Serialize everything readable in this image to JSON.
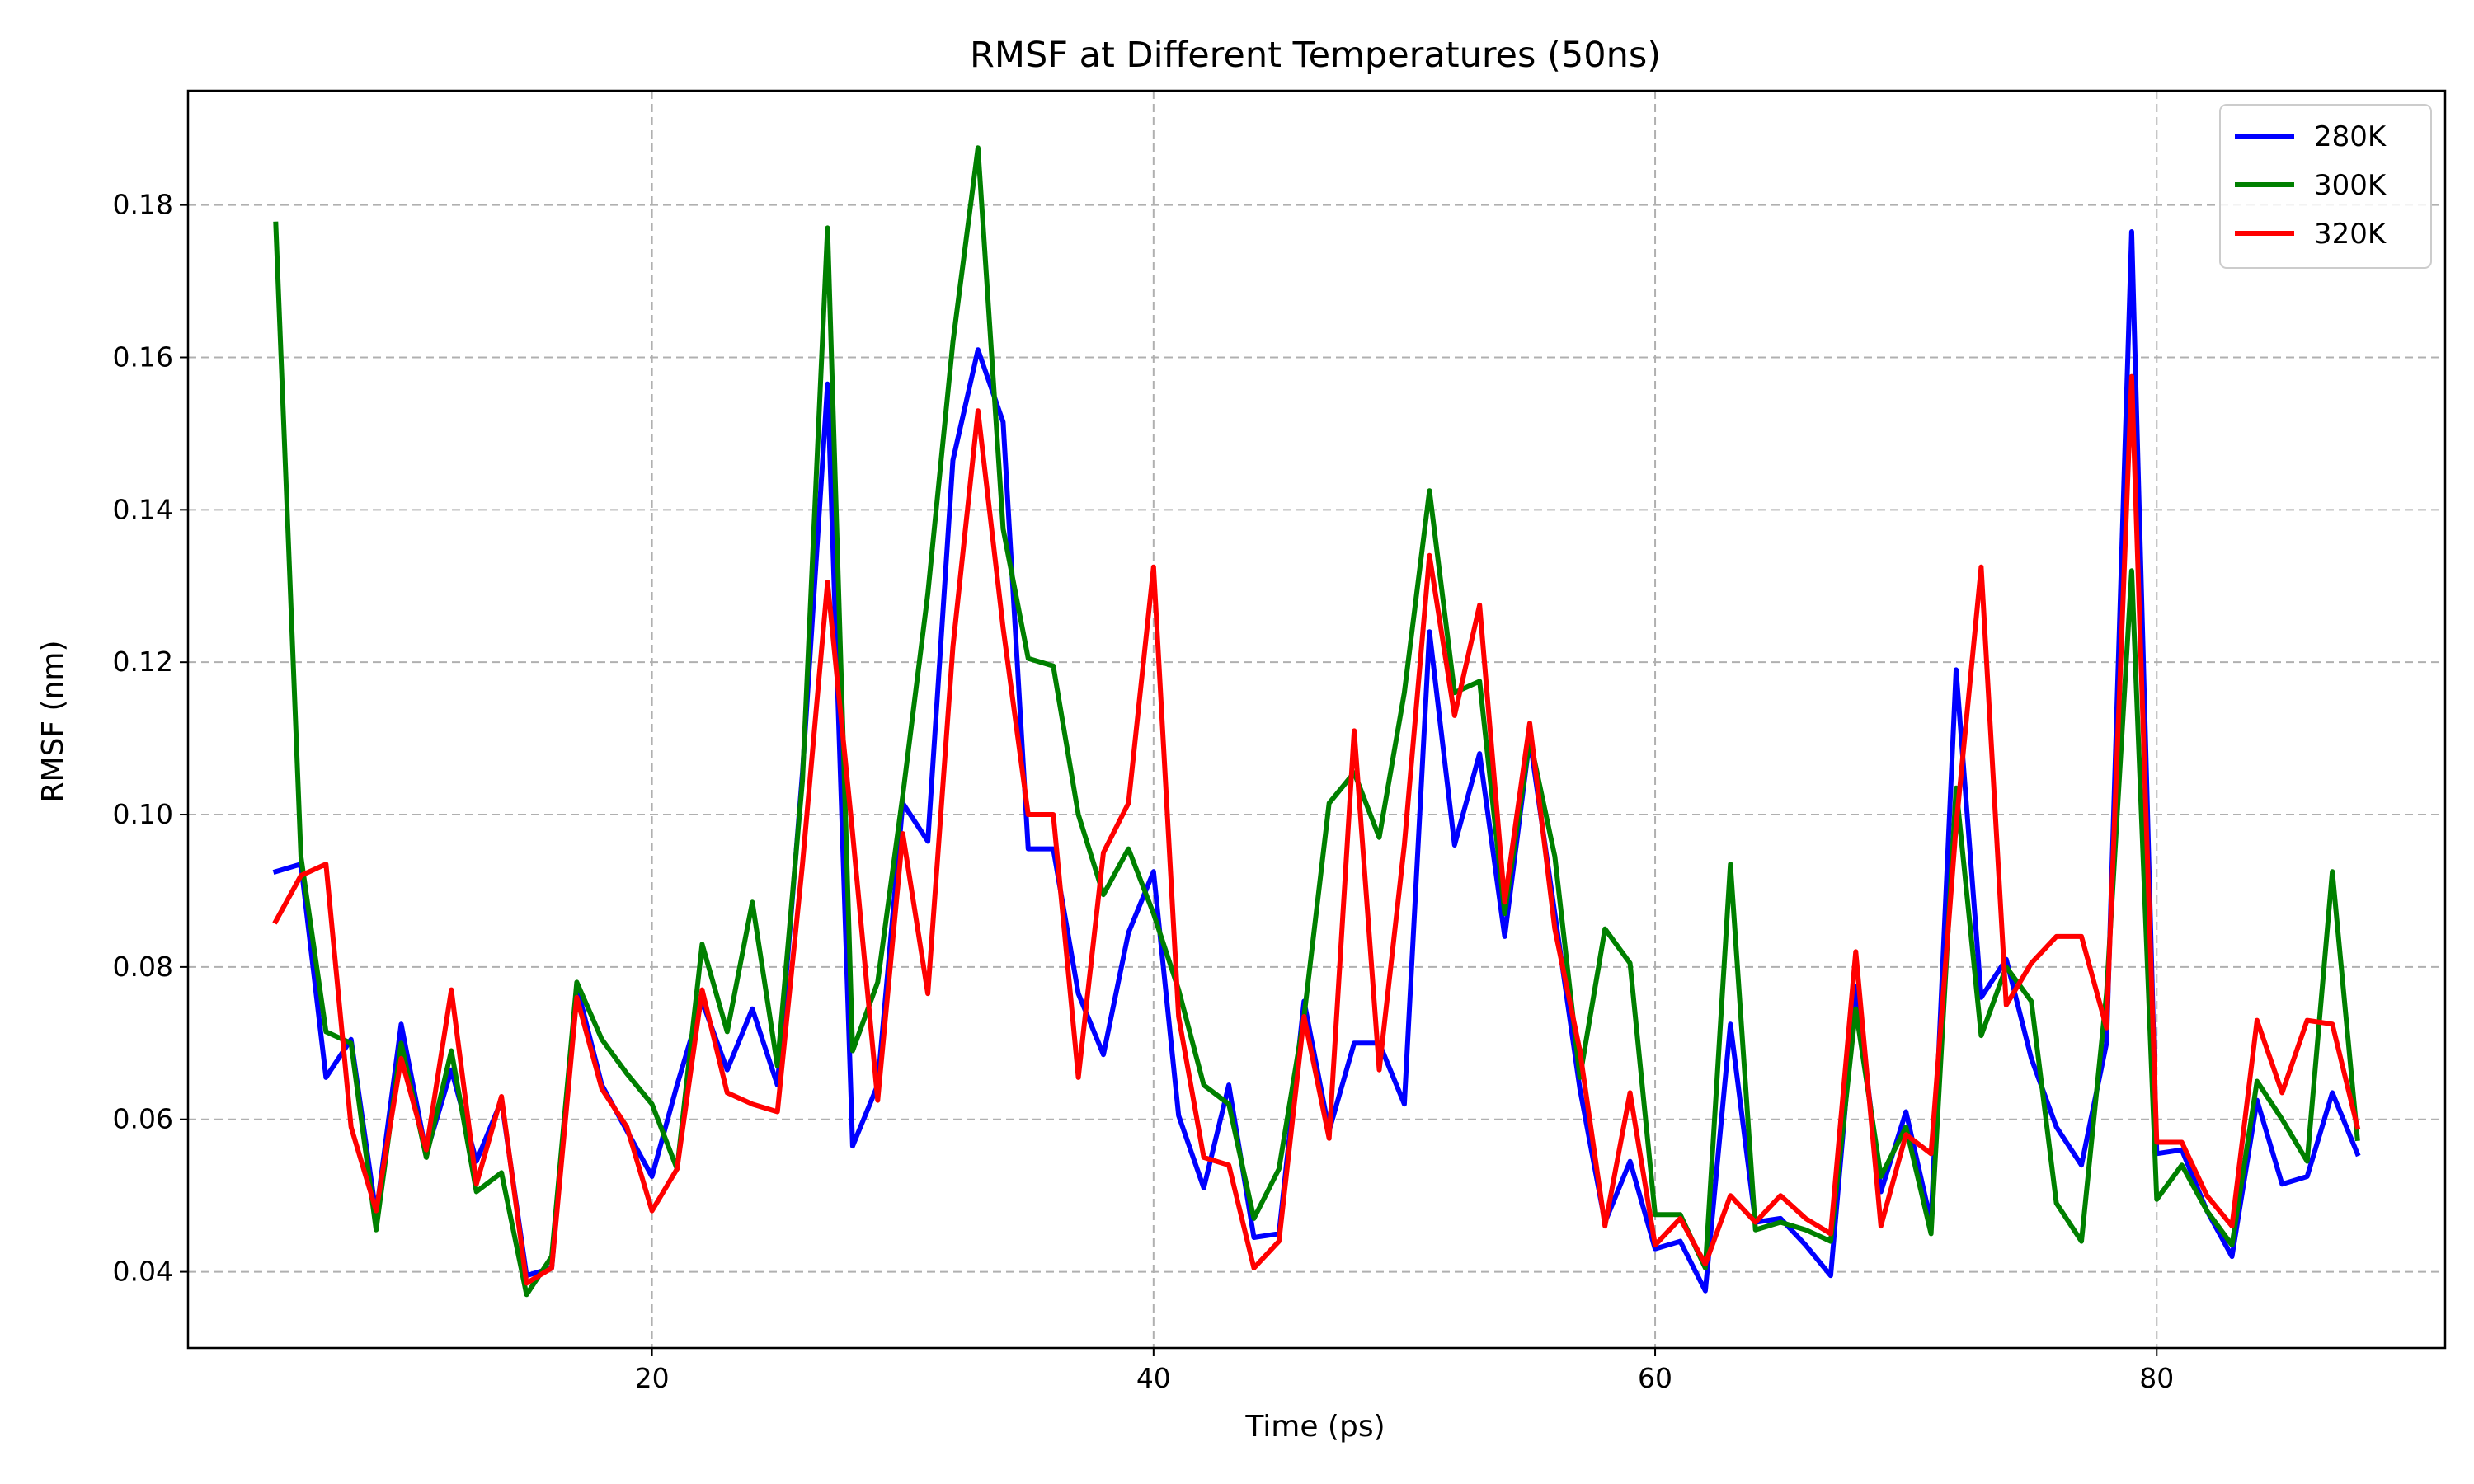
{
  "chart_data": {
    "type": "line",
    "title": "RMSF at Different Temperatures (50ns)",
    "xlabel": "Time (ps)",
    "ylabel": "RMSF (nm)",
    "xlim": [
      1.5,
      91.5
    ],
    "ylim": [
      0.03,
      0.195
    ],
    "xticks": [
      20,
      40,
      60,
      80
    ],
    "yticks": [
      0.04,
      0.06,
      0.08,
      0.1,
      0.12,
      0.14,
      0.16,
      0.18
    ],
    "ytick_labels": [
      "0.04",
      "0.06",
      "0.08",
      "0.10",
      "0.12",
      "0.14",
      "0.16",
      "0.18"
    ],
    "grid": true,
    "legend_position": "top-right",
    "x": [
      5,
      6,
      7,
      8,
      9,
      10,
      11,
      12,
      13,
      14,
      15,
      16,
      17,
      18,
      19,
      20,
      21,
      22,
      23,
      24,
      25,
      26,
      27,
      28,
      29,
      30,
      31,
      32,
      33,
      34,
      35,
      36,
      37,
      38,
      39,
      40,
      41,
      42,
      43,
      44,
      45,
      46,
      47,
      48,
      49,
      50,
      51,
      52,
      53,
      54,
      55,
      56,
      57,
      58,
      59,
      60,
      61,
      62,
      63,
      64,
      65,
      66,
      67,
      68,
      69,
      70,
      71,
      72,
      73,
      74,
      75,
      76,
      77,
      78,
      79,
      80,
      81,
      82,
      83,
      84,
      85,
      86,
      87,
      88
    ],
    "series": [
      {
        "name": "280K",
        "color": "#0000ff",
        "values": [
          0.0925,
          0.0935,
          0.0655,
          0.0705,
          0.0475,
          0.0725,
          0.0555,
          0.0665,
          0.0545,
          0.0625,
          0.0395,
          0.0405,
          0.0775,
          0.0645,
          0.0585,
          0.0525,
          0.0645,
          0.0755,
          0.0665,
          0.0745,
          0.0645,
          0.1055,
          0.1565,
          0.0565,
          0.0645,
          0.1015,
          0.0965,
          0.1465,
          0.161,
          0.1515,
          0.0955,
          0.0955,
          0.0765,
          0.0685,
          0.0845,
          0.0925,
          0.0605,
          0.051,
          0.0645,
          0.0445,
          0.045,
          0.0755,
          0.0585,
          0.07,
          0.07,
          0.062,
          0.124,
          0.096,
          0.108,
          0.084,
          0.11,
          0.087,
          0.064,
          0.0465,
          0.0545,
          0.043,
          0.044,
          0.0375,
          0.0725,
          0.0465,
          0.047,
          0.0435,
          0.0395,
          0.0775,
          0.0505,
          0.061,
          0.0465,
          0.119,
          0.076,
          0.081,
          0.068,
          0.059,
          0.054,
          0.07,
          0.1765,
          0.0555,
          0.056,
          0.048,
          0.042,
          0.0625,
          0.0515,
          0.0525,
          0.0635,
          0.0555
        ]
      },
      {
        "name": "300K",
        "color": "#008000",
        "values": [
          0.1775,
          0.0945,
          0.0715,
          0.07,
          0.0455,
          0.07,
          0.055,
          0.069,
          0.0505,
          0.053,
          0.037,
          0.042,
          0.078,
          0.0705,
          0.066,
          0.062,
          0.0535,
          0.083,
          0.0715,
          0.0885,
          0.067,
          0.1045,
          0.177,
          0.069,
          0.078,
          0.1025,
          0.129,
          0.162,
          0.1875,
          0.1375,
          0.1205,
          0.1195,
          0.1,
          0.0895,
          0.0955,
          0.087,
          0.077,
          0.0645,
          0.062,
          0.047,
          0.0535,
          0.0735,
          0.1015,
          0.1055,
          0.097,
          0.116,
          0.1425,
          0.116,
          0.1175,
          0.087,
          0.11,
          0.0945,
          0.0655,
          0.085,
          0.0805,
          0.0475,
          0.0475,
          0.0405,
          0.0935,
          0.0455,
          0.0465,
          0.0455,
          0.044,
          0.0745,
          0.0525,
          0.059,
          0.045,
          0.1035,
          0.071,
          0.08,
          0.0755,
          0.049,
          0.044,
          0.0765,
          0.132,
          0.0495,
          0.054,
          0.048,
          0.0435,
          0.065,
          0.06,
          0.0545,
          0.0925,
          0.0575
        ]
      },
      {
        "name": "320K",
        "color": "#ff0000",
        "values": [
          0.086,
          0.092,
          0.0935,
          0.059,
          0.048,
          0.068,
          0.056,
          0.077,
          0.0515,
          0.063,
          0.0385,
          0.0405,
          0.076,
          0.064,
          0.059,
          0.048,
          0.0535,
          0.077,
          0.0635,
          0.062,
          0.061,
          0.0935,
          0.1305,
          0.0975,
          0.0625,
          0.0975,
          0.0765,
          0.122,
          0.153,
          0.1245,
          0.1,
          0.1,
          0.0655,
          0.095,
          0.1015,
          0.1325,
          0.0735,
          0.055,
          0.054,
          0.0405,
          0.044,
          0.0735,
          0.0575,
          0.111,
          0.0665,
          0.096,
          0.134,
          0.113,
          0.1275,
          0.0885,
          0.112,
          0.085,
          0.069,
          0.046,
          0.0635,
          0.0435,
          0.047,
          0.041,
          0.05,
          0.0465,
          0.05,
          0.047,
          0.045,
          0.082,
          0.046,
          0.058,
          0.0555,
          0.0985,
          0.1325,
          0.075,
          0.0805,
          0.084,
          0.084,
          0.072,
          0.1575,
          0.057,
          0.057,
          0.05,
          0.046,
          0.073,
          0.0635,
          0.073,
          0.0725,
          0.059
        ]
      }
    ]
  }
}
